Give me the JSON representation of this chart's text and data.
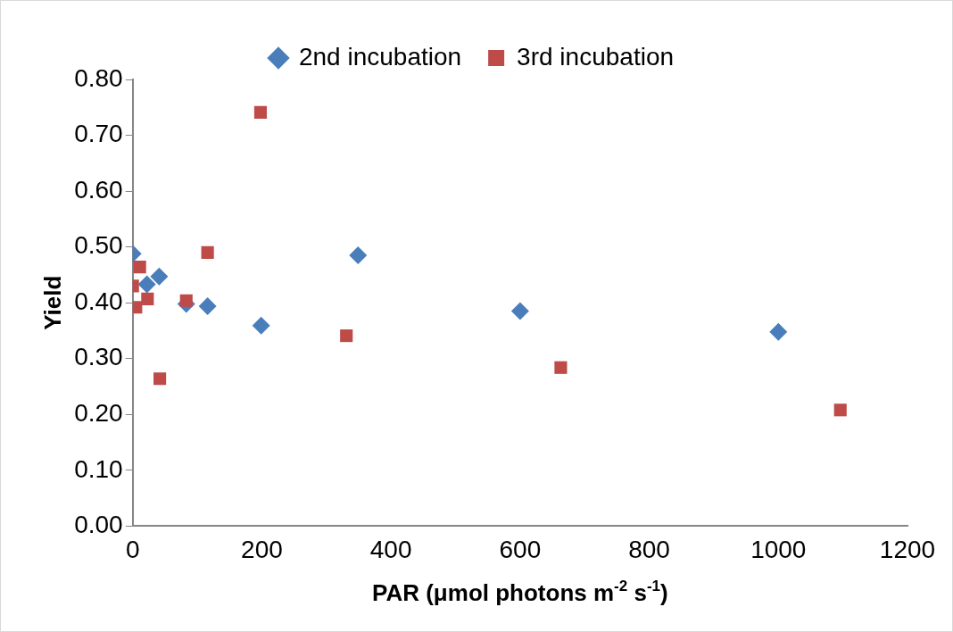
{
  "chart_data": {
    "type": "scatter",
    "xlabel": "PAR (μmol photons m$^{-2}$ s$^{-1}$)",
    "ylabel": "Yield",
    "xlim": [
      0,
      1200
    ],
    "xticks": [
      0,
      200,
      400,
      600,
      800,
      1000,
      1200
    ],
    "ylim": [
      0,
      0.8
    ],
    "yticks": [
      {
        "value": 0,
        "label": "0.00"
      },
      {
        "value": 0.1,
        "label": "0.10"
      },
      {
        "value": 0.2,
        "label": "0.20"
      },
      {
        "value": 0.3,
        "label": "0.30"
      },
      {
        "value": 0.4,
        "label": "0.40"
      },
      {
        "value": 0.5,
        "label": "0.50"
      },
      {
        "value": 0.6,
        "label": "0.60"
      },
      {
        "value": 0.7,
        "label": "0.70"
      },
      {
        "value": 0.8,
        "label": "0.80"
      }
    ],
    "grid": false,
    "legend": "top",
    "series": [
      {
        "name": "2nd incubation",
        "color": "#4a7ebb",
        "marker": "diamond",
        "x": [
          0,
          22,
          41,
          83,
          116,
          199,
          349,
          600,
          1000
        ],
        "values": [
          0.488,
          0.433,
          0.447,
          0.398,
          0.394,
          0.359,
          0.485,
          0.385,
          0.348
        ]
      },
      {
        "name": "3rd incubation",
        "color": "#be4b48",
        "marker": "square",
        "x": [
          0,
          5,
          11,
          23,
          42,
          83,
          116,
          198,
          331,
          663,
          1096
        ],
        "values": [
          0.43,
          0.392,
          0.464,
          0.407,
          0.264,
          0.404,
          0.49,
          0.741,
          0.341,
          0.284,
          0.208
        ]
      }
    ]
  }
}
